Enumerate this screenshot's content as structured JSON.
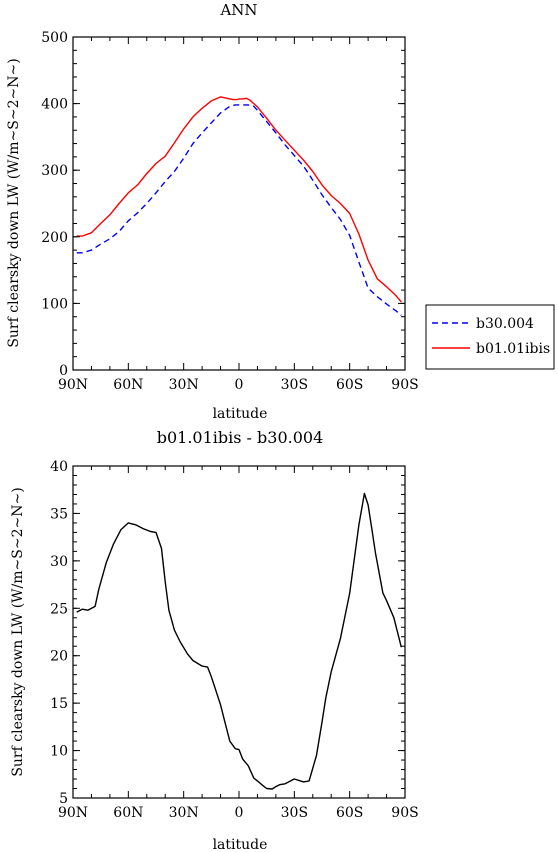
{
  "chart_data": [
    {
      "type": "line",
      "title": "ANN",
      "xlabel": "latitude",
      "ylabel": "Surf clearsky down LW (W/m~S~2~N~)",
      "x_tick_labels": [
        "90N",
        "60N",
        "30N",
        "0",
        "30S",
        "60S",
        "90S"
      ],
      "x_ticks": [
        90,
        60,
        30,
        0,
        -30,
        -60,
        -90
      ],
      "xlim": [
        90,
        -90
      ],
      "ylim": [
        0,
        500
      ],
      "y_ticks": [
        0,
        100,
        200,
        300,
        400,
        500
      ],
      "legend_position": "right",
      "series": [
        {
          "name": "b30.004",
          "color": "#0000ff",
          "dash": "dashed",
          "x": [
            88,
            85,
            80,
            75,
            70,
            65,
            60,
            55,
            50,
            45,
            40,
            35,
            30,
            25,
            20,
            15,
            10,
            5,
            2,
            0,
            -2,
            -5,
            -8,
            -10,
            -15,
            -20,
            -25,
            -30,
            -35,
            -40,
            -45,
            -50,
            -55,
            -60,
            -65,
            -70,
            -75,
            -80,
            -85,
            -88
          ],
          "y": [
            176,
            176,
            180,
            189,
            197,
            208,
            224,
            236,
            250,
            266,
            283,
            298,
            318,
            340,
            356,
            371,
            386,
            396,
            398,
            398,
            398,
            398,
            396,
            390,
            373,
            356,
            338,
            322,
            306,
            285,
            263,
            244,
            226,
            202,
            162,
            123,
            110,
            99,
            89,
            82
          ]
        },
        {
          "name": "b01.01ibis",
          "color": "#ff0000",
          "dash": "solid",
          "x": [
            88,
            85,
            80,
            75,
            70,
            65,
            60,
            55,
            50,
            45,
            40,
            35,
            30,
            25,
            20,
            15,
            10,
            5,
            3,
            1,
            0,
            -2,
            -4,
            -6,
            -8,
            -10,
            -15,
            -20,
            -25,
            -30,
            -35,
            -40,
            -45,
            -50,
            -55,
            -60,
            -65,
            -70,
            -75,
            -80,
            -85,
            -88
          ],
          "y": [
            201,
            201,
            206,
            220,
            233,
            250,
            266,
            278,
            295,
            310,
            321,
            341,
            362,
            380,
            393,
            404,
            410,
            407,
            406,
            406,
            407,
            407,
            408,
            405,
            400,
            395,
            378,
            360,
            345,
            330,
            315,
            298,
            278,
            262,
            250,
            235,
            204,
            165,
            137,
            125,
            112,
            102
          ]
        }
      ]
    },
    {
      "type": "line",
      "title": "b01.01ibis - b30.004",
      "xlabel": "latitude",
      "ylabel": "Surf clearsky down LW (W/m~S~2~N~)",
      "x_tick_labels": [
        "90N",
        "60N",
        "30N",
        "0",
        "30S",
        "60S",
        "90S"
      ],
      "x_ticks": [
        90,
        60,
        30,
        0,
        -30,
        -60,
        -90
      ],
      "xlim": [
        90,
        -90
      ],
      "ylim": [
        5,
        40
      ],
      "y_ticks": [
        5,
        10,
        15,
        20,
        25,
        30,
        35,
        40
      ],
      "series": [
        {
          "color": "#000000",
          "dash": "solid",
          "x": [
            88,
            85,
            82,
            78,
            76,
            72,
            68,
            64,
            60,
            56,
            52,
            48,
            45,
            42,
            40,
            38,
            35,
            32,
            28,
            25,
            20,
            17,
            15,
            12,
            10,
            8,
            5,
            2,
            0,
            -2,
            -5,
            -8,
            -10,
            -13,
            -15,
            -18,
            -20,
            -22,
            -25,
            -30,
            -35,
            -38,
            -42,
            -45,
            -47,
            -50,
            -55,
            -60,
            -65,
            -68,
            -70,
            -72,
            -74,
            -78,
            -80,
            -84,
            -88
          ],
          "y": [
            24.6,
            24.9,
            24.8,
            25.2,
            27.0,
            29.8,
            31.8,
            33.3,
            34.0,
            33.8,
            33.4,
            33.1,
            33.0,
            31.3,
            27.8,
            24.8,
            22.7,
            21.5,
            20.2,
            19.5,
            18.9,
            18.8,
            17.8,
            16.0,
            14.8,
            13.3,
            11.0,
            10.2,
            10.1,
            9.1,
            8.4,
            7.1,
            6.8,
            6.3,
            6.0,
            5.95,
            6.2,
            6.4,
            6.5,
            7.0,
            6.7,
            6.8,
            9.5,
            13.0,
            15.5,
            18.3,
            21.8,
            26.6,
            33.8,
            37.1,
            35.9,
            33.4,
            30.8,
            26.6,
            25.8,
            24.0,
            20.9
          ]
        }
      ]
    }
  ]
}
